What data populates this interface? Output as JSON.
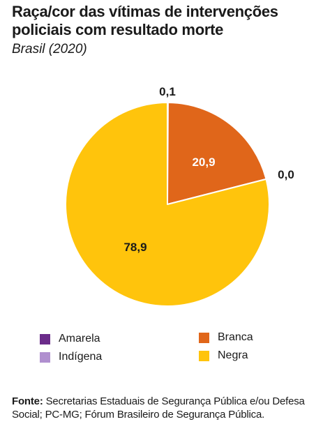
{
  "chart_data": {
    "type": "pie",
    "title": "Raça/cor das vítimas de intervenções policiais com resultado morte",
    "subtitle": "Brasil (2020)",
    "slices": [
      {
        "name": "Amarela",
        "value": 0.1,
        "label": "0,1",
        "color": "#6b2c8a"
      },
      {
        "name": "Branca",
        "value": 20.9,
        "label": "20,9",
        "color": "#e0661a"
      },
      {
        "name": "Indígena",
        "value": 0.0,
        "label": "0,0",
        "color": "#b08fcf"
      },
      {
        "name": "Negra",
        "value": 78.9,
        "label": "78,9",
        "color": "#ffc40c"
      }
    ],
    "legend_placement": "bottom"
  },
  "legend": [
    {
      "label": "Amarela",
      "color": "#6b2c8a"
    },
    {
      "label": "Indígena",
      "color": "#b08fcf"
    },
    {
      "label": "Branca",
      "color": "#e0661a"
    },
    {
      "label": "Negra",
      "color": "#ffc40c"
    }
  ],
  "source": {
    "label": "Fonte:",
    "text": "Secretarias Estaduais de Segurança Pública e/ou Defesa Social; PC-MG; Fórum Brasileiro de Segurança Pública."
  }
}
